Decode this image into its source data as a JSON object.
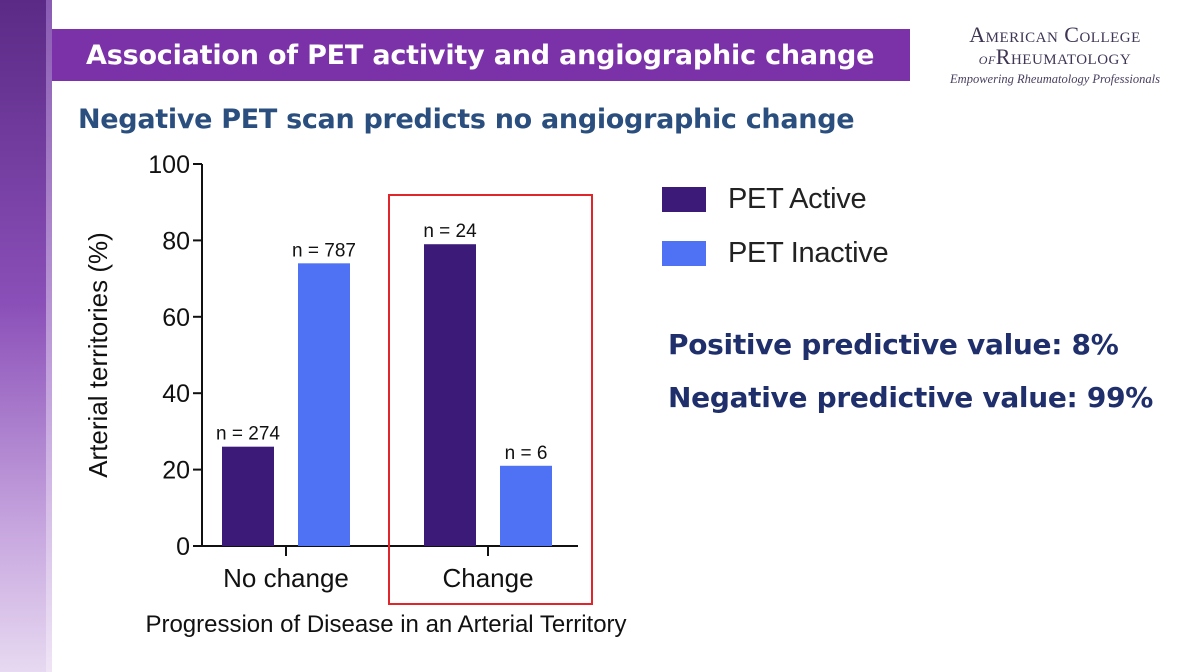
{
  "slide": {
    "title": "Association of PET activity and angiographic change",
    "subtitle": "Negative PET scan predicts no angiographic change",
    "logo": {
      "line1": "American College",
      "line2_prefix": "of",
      "line2_main": "Rheumatology",
      "tagline": "Empowering Rheumatology Professionals"
    },
    "stats": {
      "ppv": "Positive predictive value: 8%",
      "npv": "Negative predictive value: 99%"
    },
    "colors": {
      "title_band": "#7b31a8",
      "subtitle": "#2a4f7f",
      "stats_text": "#1f2f6b",
      "highlight_box": "#e0262a"
    }
  },
  "chart_data": {
    "type": "bar",
    "categories": [
      "No change",
      "Change"
    ],
    "series": [
      {
        "name": "PET Active",
        "color": "#3b1a78",
        "values": [
          26,
          79
        ],
        "labels": [
          "n = 274",
          "n = 24"
        ]
      },
      {
        "name": "PET Inactive",
        "color": "#4f72f5",
        "values": [
          74,
          21
        ],
        "labels": [
          "n = 787",
          "n = 6"
        ]
      }
    ],
    "xlabel": "Progression of Disease in an Arterial Territory",
    "ylabel": "Arterial territories (%)",
    "ylim": [
      0,
      100
    ],
    "yticks": [
      0,
      20,
      40,
      60,
      80,
      100
    ],
    "grid": false,
    "legend_position": "right",
    "highlighted_category": "Change"
  }
}
